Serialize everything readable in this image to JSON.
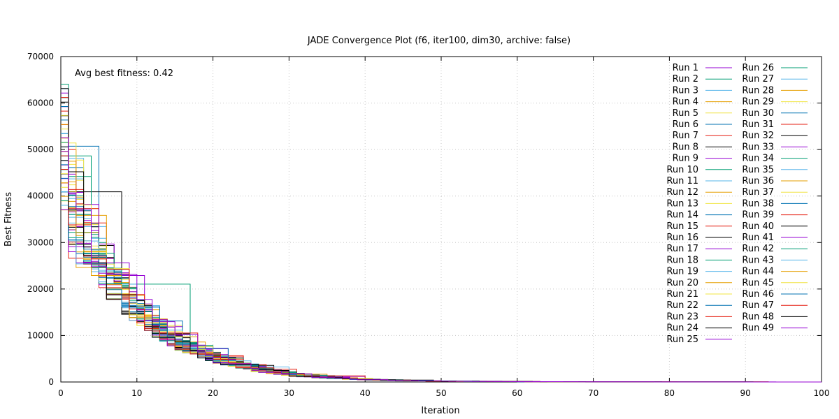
{
  "chart_data": {
    "type": "line",
    "title": "JADE Convergence Plot (f6, iter100, dim30, archive: false)",
    "xlabel": "Iteration",
    "ylabel": "Best Fitness",
    "xlim": [
      0,
      100
    ],
    "ylim": [
      0,
      70000
    ],
    "xticks": [
      0,
      10,
      20,
      30,
      40,
      50,
      60,
      70,
      80,
      90,
      100
    ],
    "yticks": [
      0,
      10000,
      20000,
      30000,
      40000,
      50000,
      60000,
      70000
    ],
    "grid": true,
    "legend_position": "top-right",
    "annotation": "Avg best fitness: 0.42",
    "colors": [
      "#9400d3",
      "#009e73",
      "#56b4e9",
      "#e69f00",
      "#f0e442",
      "#0072b2",
      "#e51e10",
      "#000000"
    ],
    "series_names": [
      "Run 1",
      "Run 2",
      "Run 3",
      "Run 4",
      "Run 5",
      "Run 6",
      "Run 7",
      "Run 8",
      "Run 9",
      "Run 10",
      "Run 11",
      "Run 12",
      "Run 13",
      "Run 14",
      "Run 15",
      "Run 16",
      "Run 17",
      "Run 18",
      "Run 19",
      "Run 20",
      "Run 21",
      "Run 22",
      "Run 23",
      "Run 24",
      "Run 25",
      "Run 26",
      "Run 27",
      "Run 28",
      "Run 29",
      "Run 30",
      "Run 31",
      "Run 32",
      "Run 33",
      "Run 34",
      "Run 35",
      "Run 36",
      "Run 37",
      "Run 38",
      "Run 39",
      "Run 40",
      "Run 41",
      "Run 42",
      "Run 43",
      "Run 44",
      "Run 45",
      "Run 46",
      "Run 47",
      "Run 48",
      "Run 49"
    ],
    "x": [
      0,
      2,
      4,
      6,
      8,
      10,
      12,
      15,
      20,
      25,
      30,
      35,
      40,
      45,
      50,
      60,
      70,
      80,
      90,
      100
    ],
    "typical_best_fitness": [
      54000,
      35000,
      28000,
      22000,
      18000,
      15000,
      12000,
      8500,
      5000,
      2800,
      1500,
      900,
      500,
      300,
      180,
      80,
      40,
      20,
      8,
      0.42
    ],
    "start_range": [
      37000,
      65000
    ]
  }
}
